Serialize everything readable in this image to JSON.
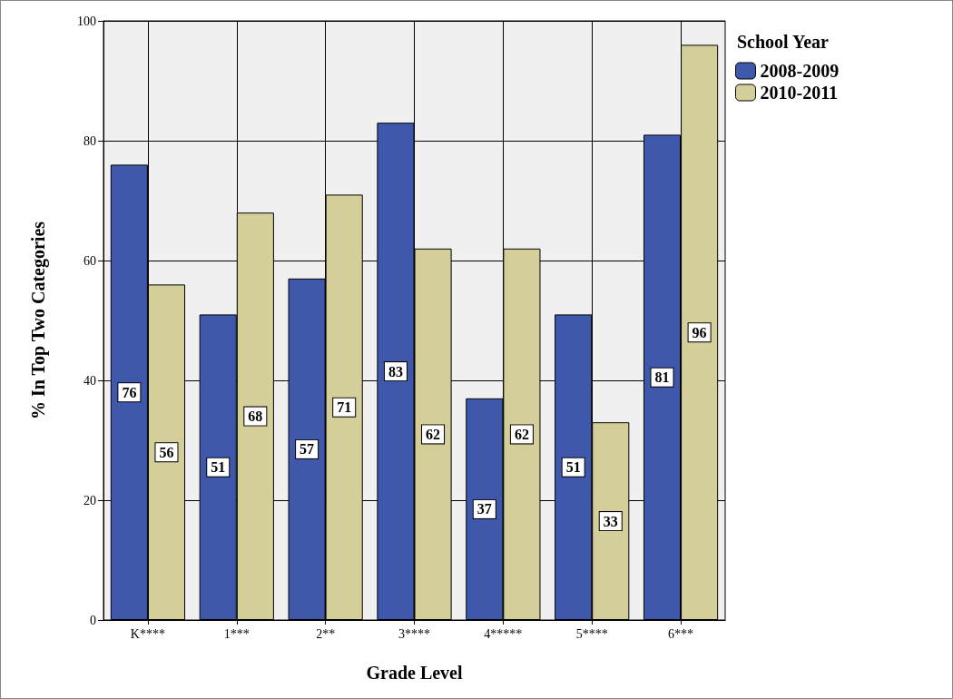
{
  "chart_data": {
    "type": "bar",
    "xlabel": "Grade Level",
    "ylabel": "% In Top Two Categories",
    "legend_title": "School Year",
    "categories": [
      "K****",
      "1***",
      "2**",
      "3****",
      "4*****",
      "5****",
      "6***"
    ],
    "series": [
      {
        "name": "2008-2009",
        "color": "#3f58ac",
        "values": [
          76,
          51,
          57,
          83,
          37,
          51,
          81
        ]
      },
      {
        "name": "2010-2011",
        "color": "#d4cf98",
        "values": [
          56,
          68,
          71,
          62,
          62,
          33,
          96
        ]
      }
    ],
    "ylim": [
      0,
      100
    ],
    "yticks": [
      0,
      20,
      40,
      60,
      80,
      100
    ],
    "grid": true,
    "legend": "top right",
    "data_labels": true
  }
}
